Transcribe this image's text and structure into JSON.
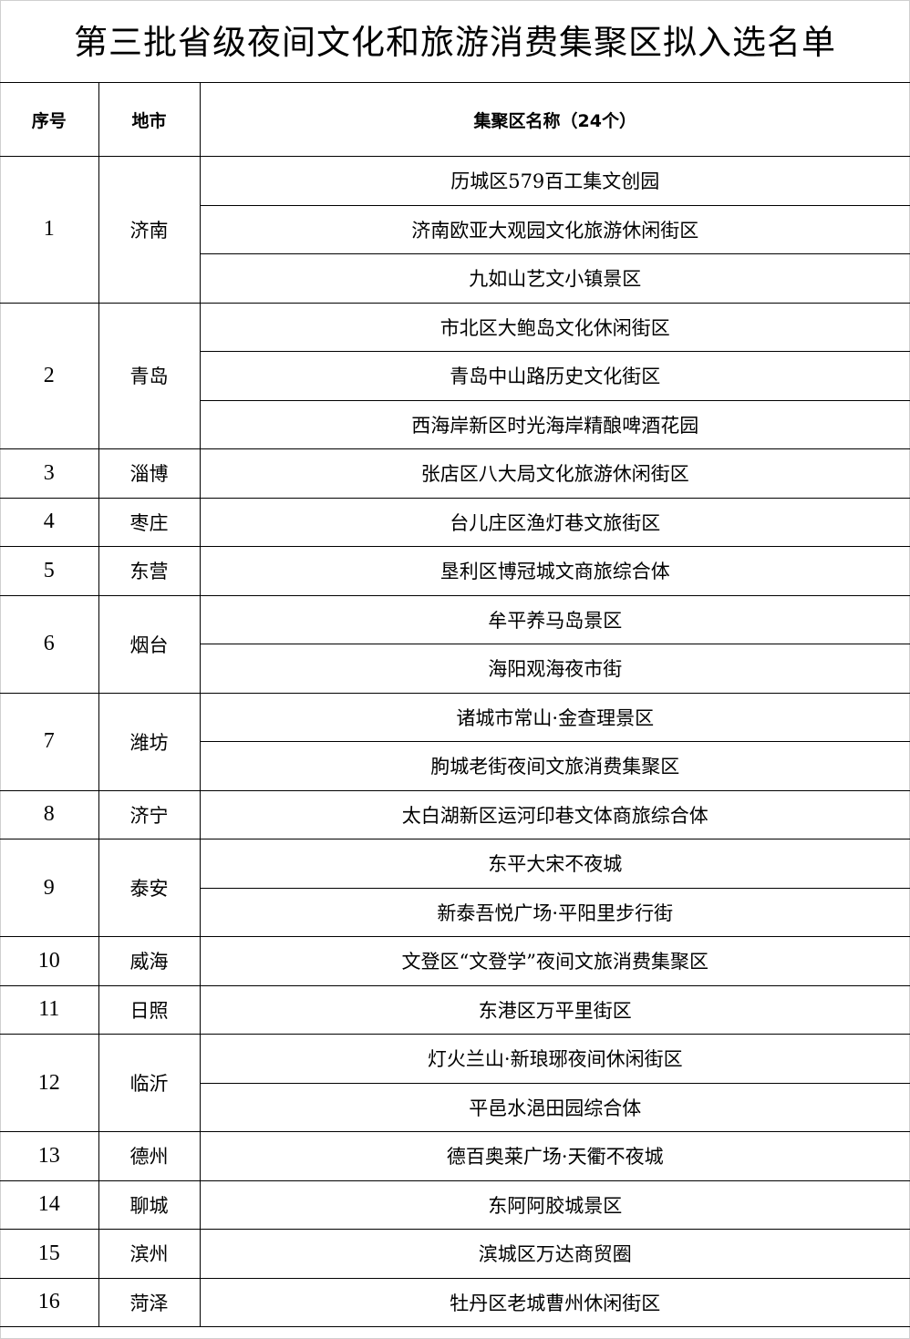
{
  "title": "第三批省级夜间文化和旅游消费集聚区拟入选名单",
  "headers": {
    "index": "序号",
    "city": "地市",
    "name": "集聚区名称（24个）"
  },
  "groups": [
    {
      "index": "1",
      "city": "济南",
      "items": [
        "历城区579百工集文创园",
        "济南欧亚大观园文化旅游休闲街区",
        "九如山艺文小镇景区"
      ]
    },
    {
      "index": "2",
      "city": "青岛",
      "items": [
        "市北区大鲍岛文化休闲街区",
        "青岛中山路历史文化街区",
        "西海岸新区时光海岸精酿啤酒花园"
      ]
    },
    {
      "index": "3",
      "city": "淄博",
      "items": [
        "张店区八大局文化旅游休闲街区"
      ]
    },
    {
      "index": "4",
      "city": "枣庄",
      "items": [
        "台儿庄区渔灯巷文旅街区"
      ]
    },
    {
      "index": "5",
      "city": "东营",
      "items": [
        "垦利区博冠城文商旅综合体"
      ]
    },
    {
      "index": "6",
      "city": "烟台",
      "items": [
        "牟平养马岛景区",
        "海阳观海夜市街"
      ]
    },
    {
      "index": "7",
      "city": "潍坊",
      "items": [
        "诸城市常山·金查理景区",
        "朐城老街夜间文旅消费集聚区"
      ]
    },
    {
      "index": "8",
      "city": "济宁",
      "items": [
        "太白湖新区运河印巷文体商旅综合体"
      ]
    },
    {
      "index": "9",
      "city": "泰安",
      "items": [
        "东平大宋不夜城",
        "新泰吾悦广场·平阳里步行街"
      ]
    },
    {
      "index": "10",
      "city": "威海",
      "items": [
        "文登区“文登学”夜间文旅消费集聚区"
      ]
    },
    {
      "index": "11",
      "city": "日照",
      "items": [
        "东港区万平里街区"
      ]
    },
    {
      "index": "12",
      "city": "临沂",
      "items": [
        "灯火兰山·新琅琊夜间休闲街区",
        "平邑水浥田园综合体"
      ]
    },
    {
      "index": "13",
      "city": "德州",
      "items": [
        "德百奥莱广场·天衢不夜城"
      ]
    },
    {
      "index": "14",
      "city": "聊城",
      "items": [
        "东阿阿胶城景区"
      ]
    },
    {
      "index": "15",
      "city": "滨州",
      "items": [
        "滨城区万达商贸圈"
      ]
    },
    {
      "index": "16",
      "city": "菏泽",
      "items": [
        "牡丹区老城曹州休闲街区"
      ]
    }
  ]
}
